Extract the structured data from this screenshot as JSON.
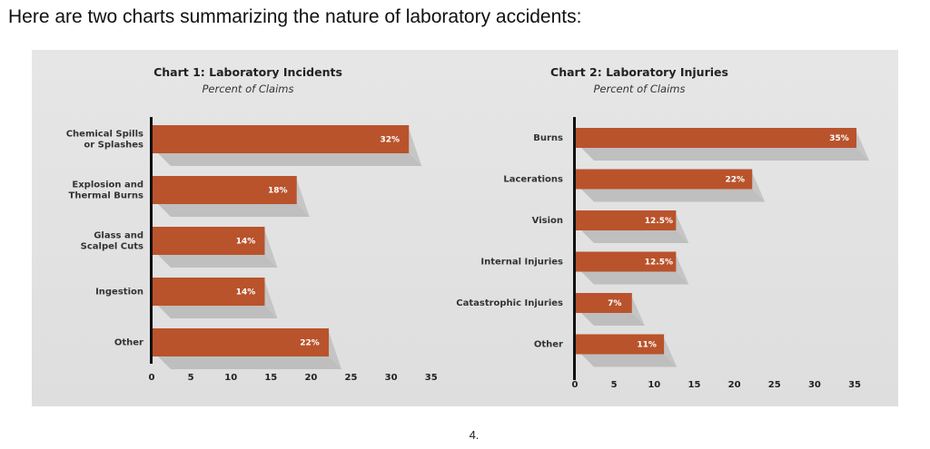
{
  "heading": "Here are two charts summarizing the nature of laboratory accidents:",
  "page_number": "4.",
  "colors": {
    "bar": "#b9532c",
    "shadow": "#b3b3b3",
    "axis": "#111111",
    "panel": "#e3e3e3"
  },
  "chart_data": [
    {
      "type": "bar",
      "orientation": "horizontal",
      "title": "Chart 1: Laboratory Incidents",
      "subtitle": "Percent of Claims",
      "categories": [
        [
          "Chemical Spills",
          "or Splashes"
        ],
        [
          "Explosion and",
          "Thermal Burns"
        ],
        [
          "Glass and",
          "Scalpel Cuts"
        ],
        [
          "Ingestion"
        ],
        [
          "Other"
        ]
      ],
      "values": [
        32,
        18,
        14,
        14,
        22
      ],
      "value_labels": [
        "32%",
        "18%",
        "14%",
        "14%",
        "22%"
      ],
      "xlim": [
        0,
        35
      ],
      "xticks": [
        "0",
        "5",
        "10",
        "15",
        "20",
        "25",
        "30",
        "35"
      ],
      "grid": false
    },
    {
      "type": "bar",
      "orientation": "horizontal",
      "title": "Chart 2: Laboratory Injuries",
      "subtitle": "Percent of Claims",
      "categories": [
        [
          "Burns"
        ],
        [
          "Lacerations"
        ],
        [
          "Vision"
        ],
        [
          "Internal Injuries"
        ],
        [
          "Catastrophic Injuries"
        ],
        [
          "Other"
        ]
      ],
      "values": [
        35,
        22,
        12.5,
        12.5,
        7,
        11
      ],
      "value_labels": [
        "35%",
        "22%",
        "12.5%",
        "12.5%",
        "7%",
        "11%"
      ],
      "xlim": [
        0,
        35
      ],
      "xticks": [
        "0",
        "5",
        "10",
        "15",
        "20",
        "25",
        "30",
        "35"
      ],
      "grid": false
    }
  ]
}
